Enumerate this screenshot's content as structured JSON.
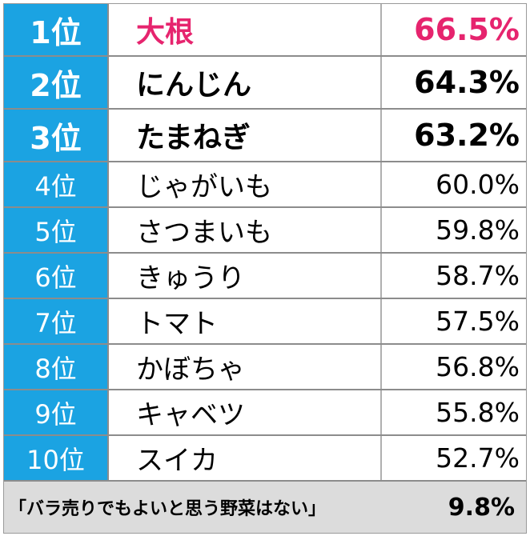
{
  "colors": {
    "rank_bg": "#1ba3e2",
    "highlight": "#e6246e",
    "footer_bg": "#dcdcdc"
  },
  "rows": [
    {
      "rank": "1位",
      "name": "大根",
      "percent": "66.5%"
    },
    {
      "rank": "2位",
      "name": "にんじん",
      "percent": "64.3%"
    },
    {
      "rank": "3位",
      "name": "たまねぎ",
      "percent": "63.2%"
    },
    {
      "rank": "4位",
      "name": "じゃがいも",
      "percent": "60.0%"
    },
    {
      "rank": "5位",
      "name": "さつまいも",
      "percent": "59.8%"
    },
    {
      "rank": "6位",
      "name": "きゅうり",
      "percent": "58.7%"
    },
    {
      "rank": "7位",
      "name": "トマト",
      "percent": "57.5%"
    },
    {
      "rank": "8位",
      "name": "かぼちゃ",
      "percent": "56.8%"
    },
    {
      "rank": "9位",
      "name": "キャベツ",
      "percent": "55.8%"
    },
    {
      "rank": "10位",
      "name": "スイカ",
      "percent": "52.7%"
    }
  ],
  "footer": {
    "label": "「バラ売りでもよいと思う野菜はない」",
    "percent": "9.8%"
  }
}
